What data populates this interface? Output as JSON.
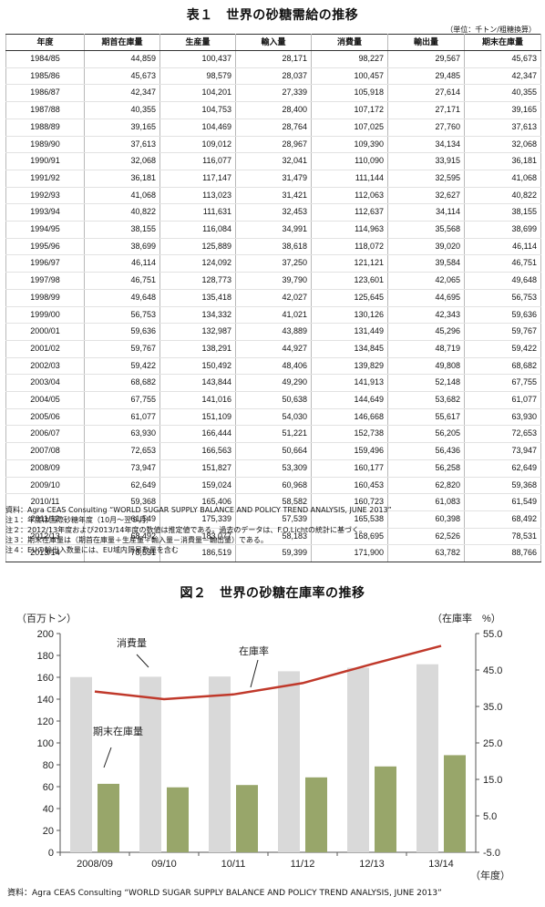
{
  "table1": {
    "title": "表１　世界の砂糖需給の推移",
    "unit": "（単位：千トン/粗糖換算）",
    "headers": [
      "年度",
      "期首在庫量",
      "生産量",
      "輸入量",
      "消費量",
      "輸出量",
      "期末在庫量"
    ],
    "rows": [
      [
        "1984/85",
        "44,859",
        "100,437",
        "28,171",
        "98,227",
        "29,567",
        "45,673"
      ],
      [
        "1985/86",
        "45,673",
        "98,579",
        "28,037",
        "100,457",
        "29,485",
        "42,347"
      ],
      [
        "1986/87",
        "42,347",
        "104,201",
        "27,339",
        "105,918",
        "27,614",
        "40,355"
      ],
      [
        "1987/88",
        "40,355",
        "104,753",
        "28,400",
        "107,172",
        "27,171",
        "39,165"
      ],
      [
        "1988/89",
        "39,165",
        "104,469",
        "28,764",
        "107,025",
        "27,760",
        "37,613"
      ],
      [
        "1989/90",
        "37,613",
        "109,012",
        "28,967",
        "109,390",
        "34,134",
        "32,068"
      ],
      [
        "1990/91",
        "32,068",
        "116,077",
        "32,041",
        "110,090",
        "33,915",
        "36,181"
      ],
      [
        "1991/92",
        "36,181",
        "117,147",
        "31,479",
        "111,144",
        "32,595",
        "41,068"
      ],
      [
        "1992/93",
        "41,068",
        "113,023",
        "31,421",
        "112,063",
        "32,627",
        "40,822"
      ],
      [
        "1993/94",
        "40,822",
        "111,631",
        "32,453",
        "112,637",
        "34,114",
        "38,155"
      ],
      [
        "1994/95",
        "38,155",
        "116,084",
        "34,991",
        "114,963",
        "35,568",
        "38,699"
      ],
      [
        "1995/96",
        "38,699",
        "125,889",
        "38,618",
        "118,072",
        "39,020",
        "46,114"
      ],
      [
        "1996/97",
        "46,114",
        "124,092",
        "37,250",
        "121,121",
        "39,584",
        "46,751"
      ],
      [
        "1997/98",
        "46,751",
        "128,773",
        "39,790",
        "123,601",
        "42,065",
        "49,648"
      ],
      [
        "1998/99",
        "49,648",
        "135,418",
        "42,027",
        "125,645",
        "44,695",
        "56,753"
      ],
      [
        "1999/00",
        "56,753",
        "134,332",
        "41,021",
        "130,126",
        "42,343",
        "59,636"
      ],
      [
        "2000/01",
        "59,636",
        "132,987",
        "43,889",
        "131,449",
        "45,296",
        "59,767"
      ],
      [
        "2001/02",
        "59,767",
        "138,291",
        "44,927",
        "134,845",
        "48,719",
        "59,422"
      ],
      [
        "2002/03",
        "59,422",
        "150,492",
        "48,406",
        "139,829",
        "49,808",
        "68,682"
      ],
      [
        "2003/04",
        "68,682",
        "143,844",
        "49,290",
        "141,913",
        "52,148",
        "67,755"
      ],
      [
        "2004/05",
        "67,755",
        "141,016",
        "50,638",
        "144,649",
        "53,682",
        "61,077"
      ],
      [
        "2005/06",
        "61,077",
        "151,109",
        "54,030",
        "146,668",
        "55,617",
        "63,930"
      ],
      [
        "2006/07",
        "63,930",
        "166,444",
        "51,221",
        "152,738",
        "56,205",
        "72,653"
      ],
      [
        "2007/08",
        "72,653",
        "166,563",
        "50,664",
        "159,496",
        "56,436",
        "73,947"
      ],
      [
        "2008/09",
        "73,947",
        "151,827",
        "53,309",
        "160,177",
        "56,258",
        "62,649"
      ],
      [
        "2009/10",
        "62,649",
        "159,024",
        "60,968",
        "160,453",
        "62,820",
        "59,368"
      ],
      [
        "2010/11",
        "59,368",
        "165,406",
        "58,582",
        "160,723",
        "61,083",
        "61,549"
      ],
      [
        "2011/12",
        "61,549",
        "175,339",
        "57,539",
        "165,538",
        "60,398",
        "68,492"
      ],
      [
        "2012/13",
        "68,492",
        "183,077",
        "58,183",
        "168,695",
        "62,526",
        "78,531"
      ],
      [
        "2013/14",
        "78,531",
        "186,519",
        "59,399",
        "171,900",
        "63,782",
        "88,766"
      ]
    ]
  },
  "notes": [
    "資料：Agra CEAS Consulting “WORLD SUGAR SUPPLY BALANCE AND POLICY TREND ANALYSIS, JUNE 2013”",
    "注１：年度は国際砂糖年度（10月～翌９月）",
    "注２：2012/13年度および2013/14年度の数値は推定値である。過去のデータは、F.O.Lichtの統計に基づく。",
    "注３：期末在庫量は（期首在庫量＋生産量＋輸入量－消費量－輸出量）である。",
    "注４：EUの輸出入数量には、EU域内貿易数量を含む"
  ],
  "figure2": {
    "title": "図２　世界の砂糖在庫率の推移",
    "source": "資料：Agra CEAS Consulting “WORLD SUGAR SUPPLY BALANCE AND POLICY TREND ANALYSIS, JUNE 2013”"
  },
  "chart_data": {
    "type": "bar",
    "categories": [
      "2008/09",
      "09/10",
      "10/11",
      "11/12",
      "12/13",
      "13/14"
    ],
    "series": [
      {
        "name": "消費量",
        "type": "bar",
        "axis": "left",
        "color": "#d9d9d9",
        "values": [
          160.2,
          160.5,
          160.7,
          165.5,
          168.7,
          171.9
        ]
      },
      {
        "name": "期末在庫量",
        "type": "bar",
        "axis": "left",
        "color": "#98a66a",
        "values": [
          62.6,
          59.4,
          61.5,
          68.5,
          78.5,
          88.8
        ]
      },
      {
        "name": "在庫率",
        "type": "line",
        "axis": "right",
        "color": "#c0392b",
        "values": [
          39.1,
          37.0,
          38.3,
          41.4,
          46.6,
          51.6
        ]
      }
    ],
    "ylabel": "（百万トン）",
    "y2label": "（在庫率　%）",
    "xlabel": "（年度）",
    "ylim": [
      0,
      200
    ],
    "yticks": [
      "0",
      "20",
      "40",
      "60",
      "80",
      "100",
      "120",
      "140",
      "160",
      "180",
      "200"
    ],
    "y2lim": [
      -5,
      55
    ],
    "y2ticks": [
      "-5.0",
      "5.0",
      "15.0",
      "25.0",
      "35.0",
      "45.0",
      "55.0"
    ],
    "grid": false
  }
}
